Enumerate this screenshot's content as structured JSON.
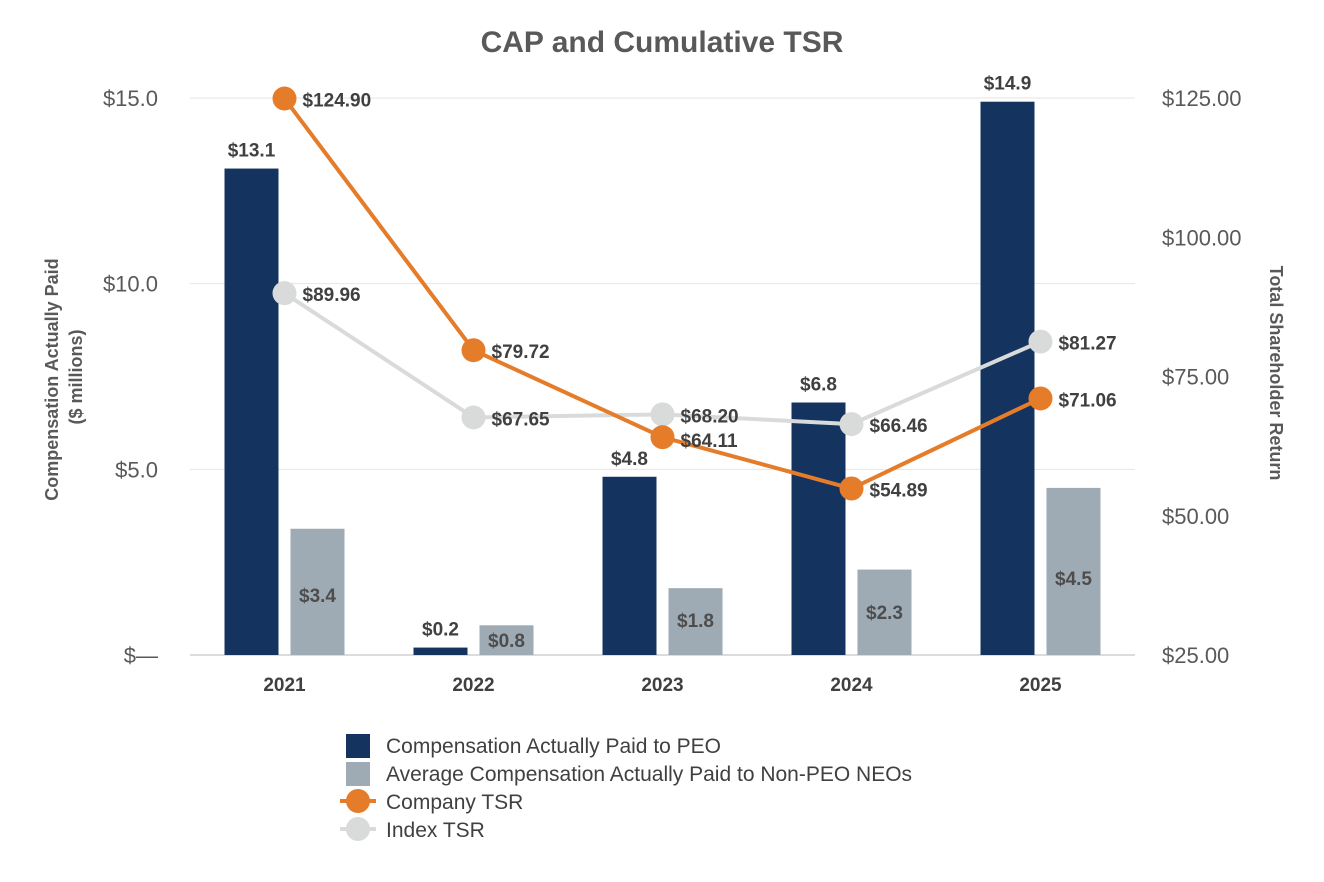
{
  "chart_data": {
    "type": "bar",
    "title": "CAP and Cumulative TSR",
    "categories": [
      "2021",
      "2022",
      "2023",
      "2024",
      "2025"
    ],
    "y_left": {
      "label_line1": "Compensation Actually Paid",
      "label_line2": "($ millions)",
      "ylim": [
        0,
        15
      ],
      "ticks": [
        0,
        5,
        10,
        15
      ],
      "tick_labels": [
        "$—",
        "$5.0",
        "$10.0",
        "$15.0"
      ]
    },
    "y_right": {
      "label": "Total Shareholder Return",
      "ylim": [
        25,
        125
      ],
      "ticks": [
        25,
        50,
        75,
        100,
        125
      ],
      "tick_labels": [
        "$25.00",
        "$50.00",
        "$75.00",
        "$100.00",
        "$125.00"
      ]
    },
    "bar_series": [
      {
        "name": "Compensation Actually Paid to PEO",
        "color": "#14345f",
        "values": [
          13.1,
          0.2,
          4.8,
          6.8,
          14.9
        ],
        "labels": [
          "$13.1",
          "$0.2",
          "$4.8",
          "$6.8",
          "$14.9"
        ]
      },
      {
        "name": "Average Compensation Actually Paid to Non-PEO NEOs",
        "color": "#9eabb5",
        "values": [
          3.4,
          0.8,
          1.8,
          2.3,
          4.5
        ],
        "labels": [
          "$3.4",
          "$0.8",
          "$1.8",
          "$2.3",
          "$4.5"
        ]
      }
    ],
    "line_series": [
      {
        "name": "Company TSR",
        "color": "#e57c2a",
        "values": [
          124.9,
          79.72,
          64.11,
          54.89,
          71.06
        ],
        "labels": [
          "$124.90",
          "$79.72",
          "$64.11",
          "$54.89",
          "$71.06"
        ]
      },
      {
        "name": "Index TSR",
        "color": "#d9dbdb",
        "values": [
          89.96,
          67.65,
          68.2,
          66.46,
          81.27
        ],
        "labels": [
          "$89.96",
          "$67.65",
          "$68.20",
          "$66.46",
          "$81.27"
        ]
      }
    ],
    "grid": true,
    "legend": "bottom"
  }
}
